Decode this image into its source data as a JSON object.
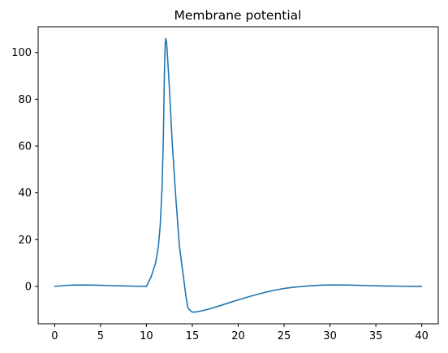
{
  "chart_data": {
    "type": "line",
    "title": "Membrane potential",
    "xlabel": "",
    "ylabel": "",
    "xlim": [
      -1.8,
      41.8
    ],
    "ylim": [
      -16,
      111
    ],
    "xticks": [
      0,
      5,
      10,
      15,
      20,
      25,
      30,
      35,
      40
    ],
    "yticks": [
      0,
      20,
      40,
      60,
      80,
      100
    ],
    "grid": false,
    "line_color": "#1f77b4",
    "series": [
      {
        "x": [
          0,
          1,
          2,
          3,
          4,
          5,
          6,
          7,
          8,
          9,
          10,
          10.5,
          11,
          11.3,
          11.5,
          11.7,
          11.85,
          11.95,
          12.05,
          12.12,
          12.2,
          12.3,
          12.5,
          12.8,
          13.2,
          13.6,
          14.0,
          14.3,
          14.5,
          14.7,
          14.85,
          15.0,
          15.3,
          16,
          17,
          18,
          19,
          20,
          21,
          22,
          23,
          24,
          25,
          26,
          27,
          28,
          29,
          30,
          31,
          32,
          33,
          34,
          35,
          36,
          37,
          38,
          39,
          40
        ],
        "y": [
          0,
          0.35,
          0.55,
          0.6,
          0.55,
          0.45,
          0.35,
          0.25,
          0.15,
          0.05,
          0,
          4,
          10,
          17,
          26,
          42,
          65,
          90,
          104,
          106,
          104,
          98,
          85,
          62,
          38,
          17,
          5,
          -4,
          -9,
          -10,
          -10.5,
          -11,
          -11,
          -10.5,
          -9.5,
          -8.3,
          -7,
          -5.8,
          -4.6,
          -3.5,
          -2.5,
          -1.6,
          -0.9,
          -0.4,
          0,
          0.3,
          0.5,
          0.6,
          0.6,
          0.55,
          0.45,
          0.35,
          0.25,
          0.15,
          0.1,
          0.05,
          0,
          0
        ]
      }
    ]
  }
}
